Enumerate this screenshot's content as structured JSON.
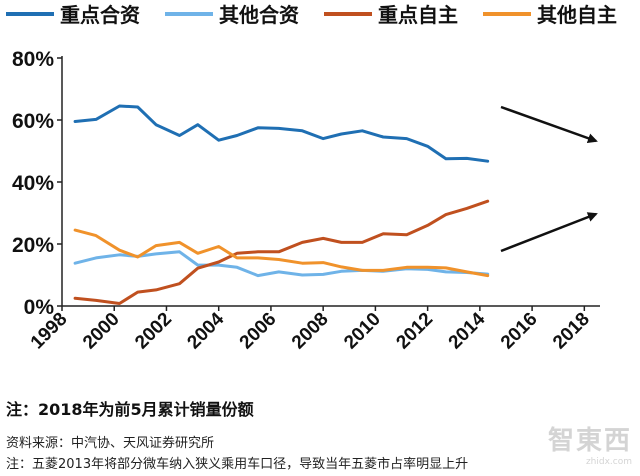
{
  "chart_data": {
    "type": "line",
    "title": "",
    "xlabel": "",
    "ylabel": "",
    "ylim": [
      0,
      80
    ],
    "xlim": [
      1998,
      2018.5
    ],
    "x_ticks": [
      "1998",
      "2000",
      "2002",
      "2004",
      "2006",
      "2008",
      "2010",
      "2012",
      "2014",
      "2016",
      "2018"
    ],
    "y_ticks": [
      "0%",
      "20%",
      "40%",
      "60%",
      "80%"
    ],
    "grid": false,
    "legend_position": "top",
    "x": [
      1998.5,
      1999.3,
      2000.2,
      2000.9,
      2001.6,
      2002.5,
      2003.2,
      2004.0,
      2004.7,
      2005.5,
      2006.3,
      2007.2,
      2008.0,
      2008.7,
      2009.5,
      2010.3,
      2011.2,
      2012.0,
      2012.7,
      2013.5,
      2014.3,
      2015.0,
      2015.8,
      2016.6,
      2017.4,
      2018.3
    ],
    "series": [
      {
        "name": "重点合资",
        "color": "#1f6fb3",
        "values": [
          59.5,
          60.2,
          64.5,
          64.2,
          58.5,
          55,
          58.5,
          53.5,
          55,
          57.5,
          57.3,
          56.5,
          54,
          55.5,
          56.5,
          54.5,
          54,
          51.5,
          47.5,
          47.6,
          46.7,
          null,
          null,
          null,
          null,
          null
        ]
      },
      {
        "name": "其他合资",
        "color": "#6fb3e8",
        "values": [
          13.8,
          15.5,
          16.5,
          16,
          16.8,
          17.5,
          13.2,
          13.2,
          12.5,
          9.8,
          11,
          10,
          10.2,
          11.2,
          11.5,
          11.2,
          12,
          11.8,
          11,
          10.8,
          10.3,
          null,
          null,
          null,
          null,
          null
        ]
      },
      {
        "name": "重点自主",
        "color": "#c0501f",
        "values": [
          2.5,
          1.8,
          0.8,
          4.5,
          5.2,
          7.2,
          12.2,
          14.2,
          17,
          17.5,
          17.5,
          20.5,
          21.8,
          20.5,
          20.5,
          23.3,
          23,
          26,
          29.5,
          31.5,
          33.8,
          null,
          null,
          null,
          null,
          null
        ]
      },
      {
        "name": "其他自主",
        "color": "#f0922b",
        "values": [
          24.5,
          22.7,
          18,
          15.8,
          19.5,
          20.5,
          17,
          19.2,
          15.5,
          15.5,
          15,
          13.8,
          14,
          12.6,
          11.5,
          11.5,
          12.5,
          12.5,
          12.3,
          11,
          9.8,
          null,
          null,
          null,
          null,
          null
        ]
      }
    ],
    "annotations": [
      "downward trend arrow for 重点合资",
      "upward trend arrow for 重点自主"
    ]
  },
  "notes": {
    "main": "注：2018年为前5月累计销量份额",
    "source": "资料来源：中汽协、天风证券研究所",
    "extra": "注：五菱2013年将部分微车纳入狭义乘用车口径，导致当年五菱市占率明显上升"
  },
  "watermark": {
    "text": "智東西",
    "sub": "zhidx.com"
  }
}
